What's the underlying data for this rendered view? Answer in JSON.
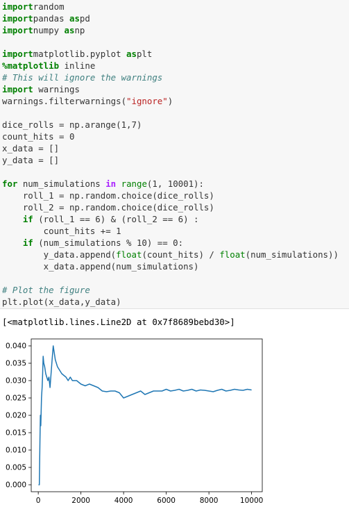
{
  "code_lines": [
    [
      [
        "kw",
        "import"
      ],
      [
        "",
        "random"
      ]
    ],
    [
      [
        "kw",
        "import"
      ],
      [
        "",
        "pandas "
      ],
      [
        "kw",
        "as"
      ],
      [
        "",
        "pd"
      ]
    ],
    [
      [
        "kw",
        "import"
      ],
      [
        "",
        "numpy "
      ],
      [
        "kw",
        "as"
      ],
      [
        "",
        "np"
      ]
    ],
    [],
    [
      [
        "kw",
        "import"
      ],
      [
        "",
        "matplotlib.pyplot "
      ],
      [
        "kw",
        "as"
      ],
      [
        "",
        "plt"
      ]
    ],
    [
      [
        "mg",
        "%matplotlib"
      ],
      [
        "",
        " inline"
      ]
    ],
    [
      [
        "cm",
        "# This will ignore the warnings"
      ]
    ],
    [
      [
        "kw",
        "import"
      ],
      [
        "",
        " warnings"
      ]
    ],
    [
      [
        "",
        "warnings.filterwarnings("
      ],
      [
        "st",
        "\"ignore\""
      ],
      [
        "",
        ")"
      ]
    ],
    [],
    [
      [
        "",
        "dice_rolls = np.arange(1,7)"
      ]
    ],
    [
      [
        "",
        "count_hits = 0"
      ]
    ],
    [
      [
        "",
        "x_data = []"
      ]
    ],
    [
      [
        "",
        "y_data = []"
      ]
    ],
    [],
    [
      [
        "kw",
        "for"
      ],
      [
        "",
        " num_simulations "
      ],
      [
        "ow",
        "in"
      ],
      [
        "",
        " "
      ],
      [
        "nb",
        "range"
      ],
      [
        "",
        "(1, 10001):"
      ]
    ],
    [
      [
        "",
        "    roll_1 = np.random.choice(dice_rolls)"
      ]
    ],
    [
      [
        "",
        "    roll_2 = np.random.choice(dice_rolls)"
      ]
    ],
    [
      [
        "",
        "    "
      ],
      [
        "kw",
        "if"
      ],
      [
        "",
        " (roll_1 == 6) & (roll_2 == 6) :"
      ]
    ],
    [
      [
        "",
        "        count_hits += 1"
      ]
    ],
    [
      [
        "",
        "    "
      ],
      [
        "kw",
        "if"
      ],
      [
        "",
        " (num_simulations % 10) == 0:"
      ]
    ],
    [
      [
        "",
        "        y_data.append("
      ],
      [
        "nb",
        "float"
      ],
      [
        "",
        "(count_hits) / "
      ],
      [
        "nb",
        "float"
      ],
      [
        "",
        "(num_simulations))"
      ]
    ],
    [
      [
        "",
        "        x_data.append(num_simulations)"
      ]
    ],
    [],
    [
      [
        "cm",
        "# Plot the figure"
      ]
    ],
    [
      [
        "",
        "plt.plot(x_data,y_data)"
      ]
    ]
  ],
  "output": {
    "text": "[<matplotlib.lines.Line2D at 0x7f8689bebd30>]"
  },
  "chart_data": {
    "type": "line",
    "xlim": [
      -330,
      10500
    ],
    "ylim": [
      -0.002,
      0.042
    ],
    "x_ticks": [
      0,
      2000,
      4000,
      6000,
      8000,
      10000
    ],
    "y_ticks": [
      0.0,
      0.005,
      0.01,
      0.015,
      0.02,
      0.025,
      0.03,
      0.035,
      0.04
    ],
    "x_tick_labels": [
      "0",
      "2000",
      "4000",
      "6000",
      "8000",
      "10000"
    ],
    "y_tick_labels": [
      "0.000",
      "0.005",
      "0.010",
      "0.015",
      "0.020",
      "0.025",
      "0.030",
      "0.035",
      "0.040"
    ],
    "color": "#1f77b4",
    "grid": false,
    "series": [
      {
        "x": [
          10,
          50,
          80,
          100,
          120,
          150,
          180,
          200,
          230,
          260,
          300,
          350,
          400,
          450,
          500,
          550,
          600,
          650,
          700,
          750,
          800,
          900,
          1000,
          1100,
          1200,
          1300,
          1400,
          1500,
          1600,
          1800,
          2000,
          2200,
          2400,
          2600,
          2800,
          3000,
          3200,
          3400,
          3600,
          3800,
          4000,
          4200,
          4400,
          4600,
          4800,
          5000,
          5200,
          5400,
          5600,
          5800,
          6000,
          6200,
          6400,
          6600,
          6800,
          7000,
          7200,
          7400,
          7600,
          7800,
          8000,
          8200,
          8400,
          8600,
          8800,
          9000,
          9200,
          9400,
          9600,
          9800,
          10000
        ],
        "y": [
          0.0,
          0.0,
          0.013,
          0.02,
          0.017,
          0.025,
          0.028,
          0.031,
          0.037,
          0.035,
          0.034,
          0.032,
          0.031,
          0.03,
          0.031,
          0.028,
          0.032,
          0.036,
          0.04,
          0.038,
          0.036,
          0.034,
          0.033,
          0.032,
          0.0315,
          0.031,
          0.03,
          0.031,
          0.03,
          0.03,
          0.029,
          0.0285,
          0.029,
          0.0285,
          0.028,
          0.027,
          0.0268,
          0.027,
          0.027,
          0.0265,
          0.025,
          0.0255,
          0.026,
          0.0265,
          0.027,
          0.026,
          0.0265,
          0.027,
          0.027,
          0.027,
          0.0275,
          0.027,
          0.0272,
          0.0275,
          0.027,
          0.0272,
          0.0275,
          0.027,
          0.0273,
          0.0272,
          0.027,
          0.0268,
          0.0272,
          0.0275,
          0.027,
          0.0272,
          0.0275,
          0.0273,
          0.0272,
          0.0275,
          0.0273
        ]
      }
    ]
  }
}
